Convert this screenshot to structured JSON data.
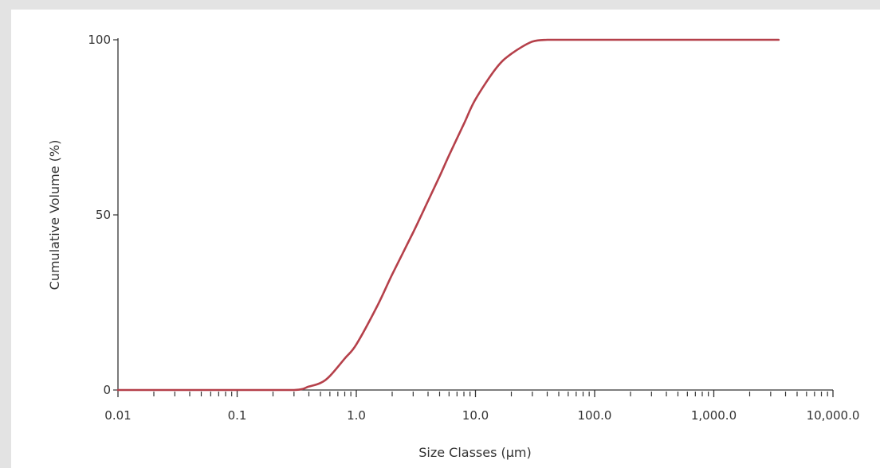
{
  "chart_data": {
    "type": "line",
    "xlabel": "Size Classes (µm)",
    "ylabel": "Cumulative Volume (%)",
    "x_scale": "log",
    "xlim": [
      0.01,
      10000
    ],
    "ylim": [
      0,
      100
    ],
    "x_tick_labels": [
      "0.01",
      "0.1",
      "1.0",
      "10.0",
      "100.0",
      "1,000.0",
      "10,000.0"
    ],
    "x_tick_values": [
      0.01,
      0.1,
      1,
      10,
      100,
      1000,
      10000
    ],
    "y_tick_labels": [
      "0",
      "50",
      "100"
    ],
    "y_tick_values": [
      0,
      50,
      100
    ],
    "grid": false,
    "series": [
      {
        "color": "#b5404a",
        "x": [
          0.01,
          0.1,
          0.3,
          0.4,
          0.5,
          0.6,
          0.8,
          1.0,
          1.5,
          2.0,
          3.0,
          4.0,
          5.0,
          6.0,
          8.0,
          10.0,
          15.0,
          20.0,
          30.0,
          40.0,
          60.0,
          100.0,
          500.0,
          1000.0,
          3500.0
        ],
        "y": [
          0,
          0,
          0,
          1,
          2,
          4,
          9,
          13,
          24,
          33,
          45,
          54,
          61,
          67,
          76,
          83,
          92,
          96,
          99.5,
          100,
          100,
          100,
          100,
          100,
          100
        ]
      }
    ]
  }
}
